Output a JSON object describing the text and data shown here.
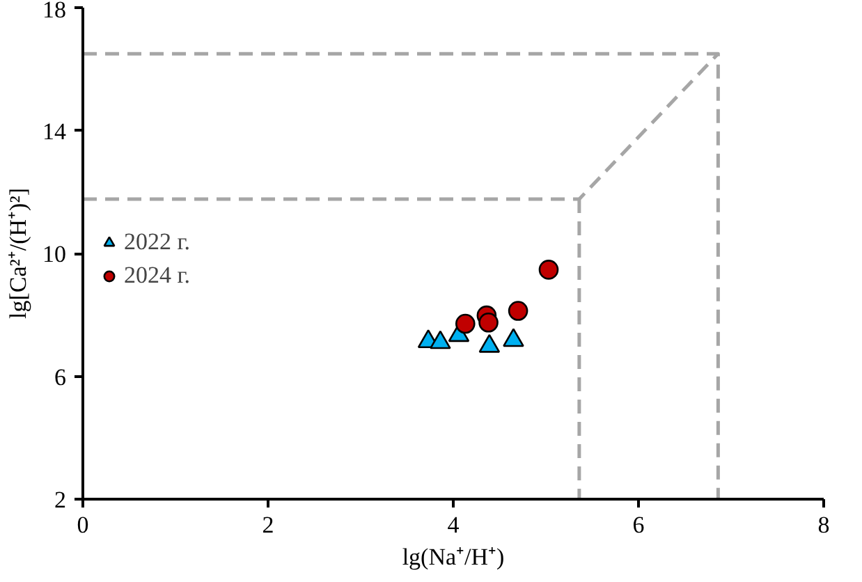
{
  "chart_data": {
    "type": "scatter",
    "xlabel": "lg(Na⁺/H⁺)",
    "ylabel": "lg[Ca²⁺/(H⁺)²]",
    "xlim": [
      0,
      8
    ],
    "ylim": [
      2,
      18
    ],
    "xticks": [
      0,
      2,
      4,
      6,
      8
    ],
    "yticks": [
      2,
      6,
      10,
      14,
      18
    ],
    "grid": false,
    "legend": "left",
    "series": [
      {
        "type": "line",
        "color": "#a6a6a6",
        "line_style": "dashed",
        "marker": "none",
        "x": [
          0,
          6.86,
          6.86
        ],
        "values": [
          16.5,
          16.5,
          2
        ]
      },
      {
        "type": "line",
        "color": "#a6a6a6",
        "line_style": "dashed",
        "marker": "none",
        "x": [
          0,
          5.36,
          6.86
        ],
        "values": [
          11.77,
          11.77,
          16.5
        ]
      },
      {
        "type": "line",
        "color": "#a6a6a6",
        "line_style": "dashed",
        "marker": "none",
        "x": [
          5.36,
          5.36
        ],
        "values": [
          11.77,
          2
        ]
      },
      {
        "name": "2022 г.",
        "color": "#00b0f0",
        "marker": "triangle",
        "x": [
          3.73,
          3.86,
          4.06,
          4.39,
          4.65
        ],
        "values": [
          7.13,
          7.1,
          7.33,
          6.98,
          7.17
        ]
      },
      {
        "name": "2024 г.",
        "color": "#c00000",
        "marker": "circle",
        "x": [
          4.13,
          4.36,
          4.38,
          4.7,
          5.03
        ],
        "values": [
          7.71,
          7.98,
          7.75,
          8.13,
          9.47
        ]
      }
    ]
  }
}
